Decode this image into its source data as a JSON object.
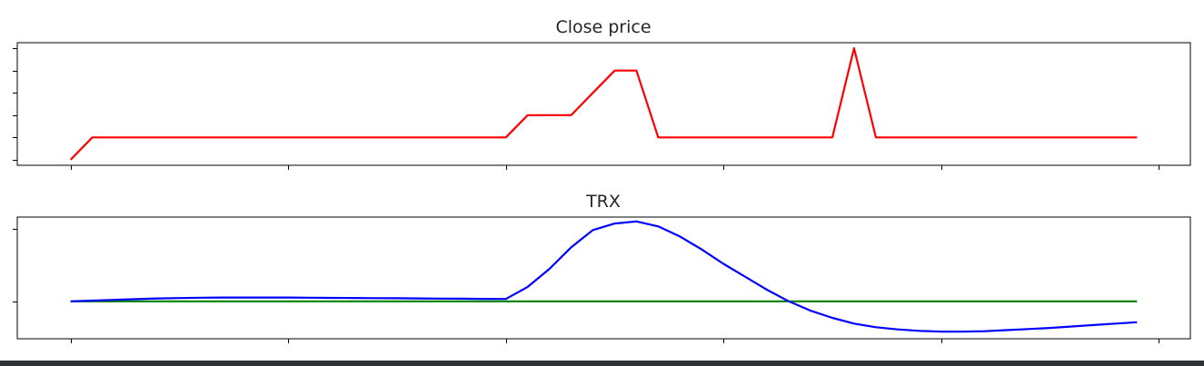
{
  "colors": {
    "close_line": "#ff0000",
    "trx_line": "#0000ff",
    "zero_line": "#008000",
    "footer": "#2f3134"
  },
  "chart_data": [
    {
      "type": "line",
      "title": "Close price",
      "xlabel": "",
      "ylabel": "",
      "x": [
        0,
        1,
        2,
        3,
        4,
        5,
        6,
        7,
        8,
        9,
        10,
        11,
        12,
        13,
        14,
        15,
        16,
        17,
        18,
        19,
        20,
        21,
        22,
        23,
        24,
        25,
        26,
        27,
        28,
        29,
        30,
        31,
        32,
        33,
        34,
        35,
        36,
        37,
        38,
        39,
        40,
        41,
        42,
        43,
        44,
        45,
        46,
        47,
        48,
        49
      ],
      "series": [
        {
          "color": "#ff0000",
          "values": [
            0,
            1,
            1,
            1,
            1,
            1,
            1,
            1,
            1,
            1,
            1,
            1,
            1,
            1,
            1,
            1,
            1,
            1,
            1,
            1,
            1,
            2,
            2,
            2,
            3,
            4,
            4,
            1,
            1,
            1,
            1,
            1,
            1,
            1,
            1,
            1,
            5,
            1,
            1,
            1,
            1,
            1,
            1,
            1,
            1,
            1,
            1,
            1,
            1,
            1
          ]
        }
      ],
      "xlim": [
        -2.45,
        51.45
      ],
      "ylim": [
        -0.25,
        5.25
      ],
      "x_ticks": [
        0,
        10,
        20,
        30,
        40,
        50
      ],
      "y_ticks": [
        0,
        1,
        2,
        3,
        4,
        5
      ],
      "show_tick_labels": false,
      "grid": false
    },
    {
      "type": "line",
      "title": "TRX",
      "xlabel": "",
      "ylabel": "",
      "x": [
        0,
        1,
        2,
        3,
        4,
        5,
        6,
        7,
        8,
        9,
        10,
        11,
        12,
        13,
        14,
        15,
        16,
        17,
        18,
        19,
        20,
        21,
        22,
        23,
        24,
        25,
        26,
        27,
        28,
        29,
        30,
        31,
        32,
        33,
        34,
        35,
        36,
        37,
        38,
        39,
        40,
        41,
        42,
        43,
        44,
        45,
        46,
        47,
        48,
        49
      ],
      "series": [
        {
          "color": "#0000ff",
          "values": [
            0,
            0.01,
            0.02,
            0.03,
            0.04,
            0.045,
            0.05,
            0.052,
            0.053,
            0.053,
            0.052,
            0.05,
            0.048,
            0.046,
            0.044,
            0.042,
            0.04,
            0.038,
            0.036,
            0.034,
            0.033,
            0.2,
            0.45,
            0.75,
            0.99,
            1.08,
            1.11,
            1.04,
            0.9,
            0.72,
            0.52,
            0.34,
            0.16,
            0.0,
            -0.13,
            -0.23,
            -0.31,
            -0.36,
            -0.39,
            -0.41,
            -0.42,
            -0.42,
            -0.415,
            -0.4,
            -0.385,
            -0.37,
            -0.35,
            -0.33,
            -0.31,
            -0.29
          ],
          "values_note_removed": true
        },
        {
          "color": "#008000",
          "values": [
            0,
            0,
            0,
            0,
            0,
            0,
            0,
            0,
            0,
            0,
            0,
            0,
            0,
            0,
            0,
            0,
            0,
            0,
            0,
            0,
            0,
            0,
            0,
            0,
            0,
            0,
            0,
            0,
            0,
            0,
            0,
            0,
            0,
            0,
            0,
            0,
            0,
            0,
            0,
            0,
            0,
            0,
            0,
            0,
            0,
            0,
            0,
            0,
            0,
            0
          ]
        }
      ],
      "xlim": [
        -2.45,
        51.45
      ],
      "ylim": [
        -0.52,
        1.17
      ],
      "x_ticks": [
        0,
        10,
        20,
        30,
        40,
        50
      ],
      "y_ticks": [
        0,
        1
      ],
      "show_tick_labels": false,
      "grid": false
    }
  ]
}
